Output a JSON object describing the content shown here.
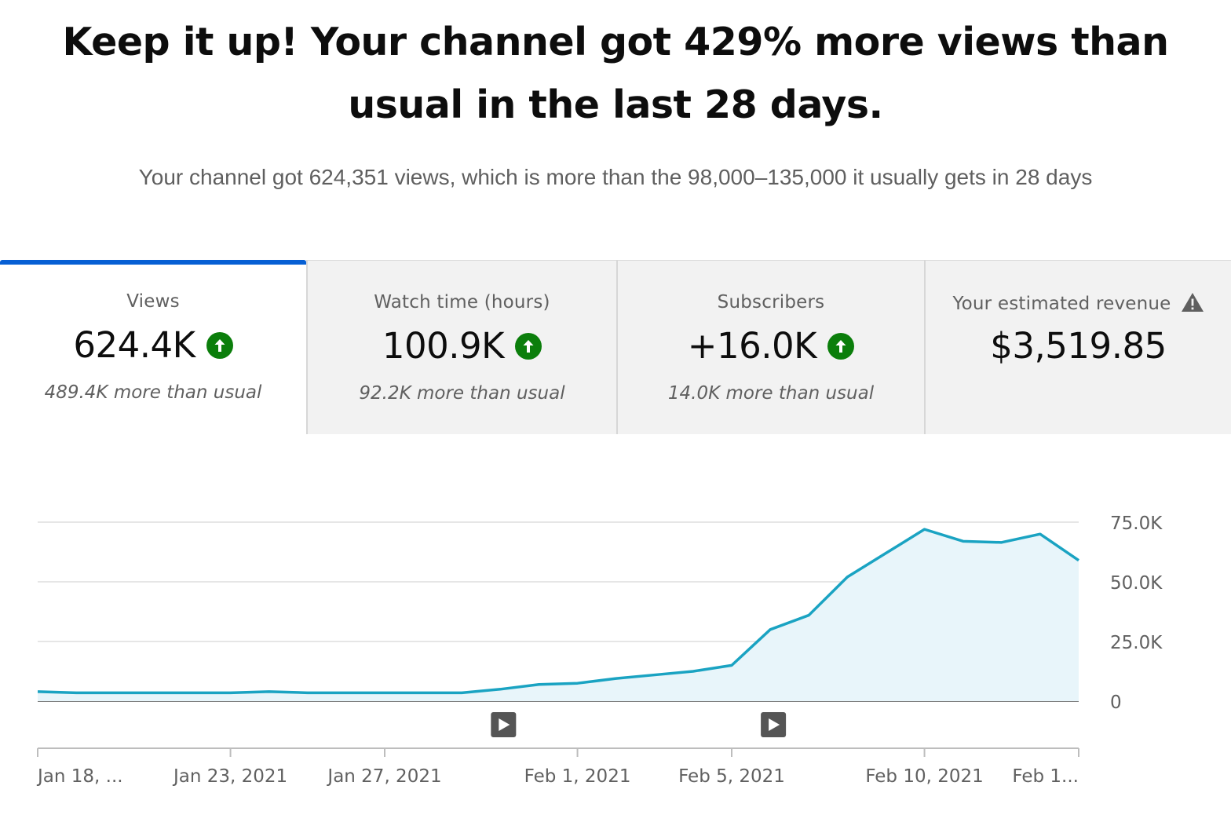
{
  "headline": "Keep it up! Your channel got 429% more views than usual in the last 28 days.",
  "subline": "Your channel got 624,351 views, which is more than the 98,000–135,000 it usually gets in 28 days",
  "tabs": [
    {
      "label": "Views",
      "value": "624.4K",
      "delta": "489.4K more than usual",
      "trend_icon": "arrow-up-circle-icon",
      "selected": true
    },
    {
      "label": "Watch time (hours)",
      "value": "100.9K",
      "delta": "92.2K more than usual",
      "trend_icon": "arrow-up-circle-icon",
      "selected": false
    },
    {
      "label": "Subscribers",
      "value": "+16.0K",
      "delta": "14.0K more than usual",
      "trend_icon": "arrow-up-circle-icon",
      "selected": false
    },
    {
      "label": "Your estimated revenue",
      "value": "$3,519.85",
      "delta": "",
      "trend_icon": "warning-triangle-icon",
      "selected": false
    }
  ],
  "colors": {
    "accent": "#065fd4",
    "up": "#0b7e0b",
    "line": "#1aa3c2",
    "area": "#e8f5fa"
  },
  "chart_data": {
    "type": "area",
    "series": [
      {
        "values": [
          4000,
          3500,
          3500,
          3500,
          3500,
          3500,
          4000,
          3500,
          3500,
          3500,
          3500,
          3500,
          5000,
          7000,
          7500,
          9500,
          11000,
          12500,
          15000,
          30000,
          36000,
          52000,
          62000,
          72000,
          67000,
          66500,
          70000,
          59000
        ]
      }
    ],
    "ylim": [
      0,
      75000
    ],
    "yticks": [
      "0",
      "25.0K",
      "50.0K",
      "75.0K"
    ],
    "ytick_values": [
      0,
      25000,
      50000,
      75000
    ],
    "xticks": [
      {
        "label": "Jan 18, ...",
        "index": 0
      },
      {
        "label": "Jan 23, 2021",
        "index": 5
      },
      {
        "label": "Jan 27, 2021",
        "index": 9
      },
      {
        "label": "Feb 1, 2021",
        "index": 14
      },
      {
        "label": "Feb 5, 2021",
        "index": 18
      },
      {
        "label": "Feb 10, 2021",
        "index": 23
      },
      {
        "label": "Feb 1...",
        "index": 27
      }
    ],
    "video_markers": [
      12,
      19
    ],
    "grid": true,
    "yaxis_side": "right"
  }
}
